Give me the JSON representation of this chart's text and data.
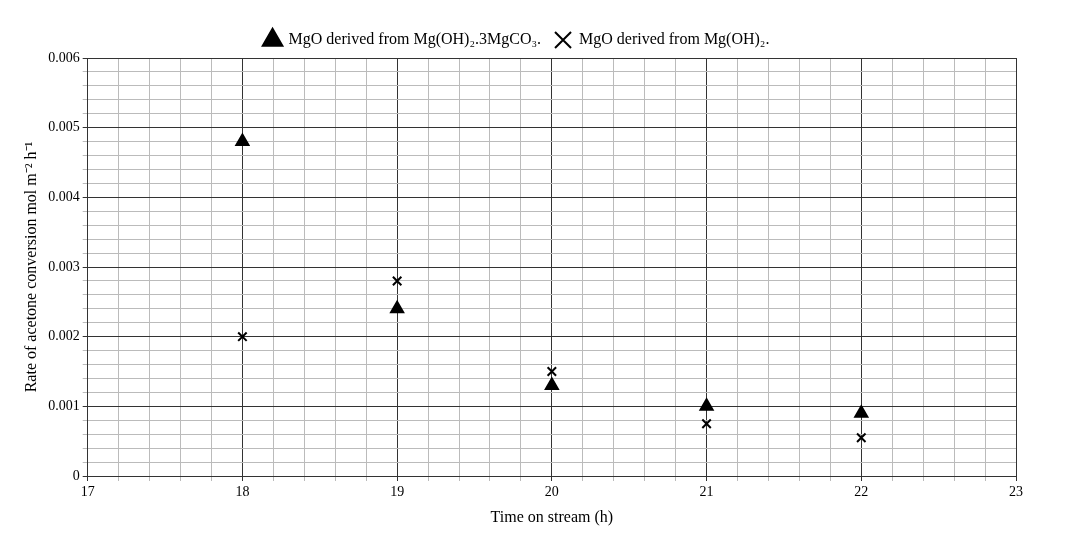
{
  "chart_data": {
    "type": "scatter",
    "xlabel": "Time on stream (h)",
    "ylabel": "Rate of acetone conversion mol m⁻² h⁻¹",
    "series": [
      {
        "name": "MgO derived from Mg(OH)₂.3MgCO₃.",
        "color": "#000000",
        "marker": "triangle",
        "x": [
          18,
          19,
          20,
          21,
          22
        ],
        "values": [
          0.0048,
          0.0024,
          0.0013,
          0.001,
          0.0009
        ]
      },
      {
        "name": "MgO derived from Mg(OH)₂.",
        "color": "#000000",
        "marker": "cross",
        "x": [
          18,
          19,
          20,
          21,
          22
        ],
        "values": [
          0.002,
          0.0028,
          0.0015,
          0.00075,
          0.00055
        ]
      }
    ],
    "xlim": [
      17,
      23
    ],
    "xticks": [
      17,
      {
        "value": 17.2,
        "label": null
      },
      {
        "value": 17.4,
        "label": null
      },
      {
        "value": 17.6,
        "label": null
      },
      {
        "value": 17.8,
        "label": null
      },
      18,
      {
        "value": 18.2,
        "label": null
      },
      {
        "value": 18.4,
        "label": null
      },
      {
        "value": 18.6,
        "label": null
      },
      {
        "value": 18.8,
        "label": null
      },
      19,
      {
        "value": 19.2,
        "label": null
      },
      {
        "value": 19.4,
        "label": null
      },
      {
        "value": 19.6,
        "label": null
      },
      {
        "value": 19.8,
        "label": null
      },
      20,
      {
        "value": 20.2,
        "label": null
      },
      {
        "value": 20.4,
        "label": null
      },
      {
        "value": 20.6,
        "label": null
      },
      {
        "value": 20.8,
        "label": null
      },
      21,
      {
        "value": 21.2,
        "label": null
      },
      {
        "value": 21.4,
        "label": null
      },
      {
        "value": 21.6,
        "label": null
      },
      {
        "value": 21.8,
        "label": null
      },
      22,
      {
        "value": 22.2,
        "label": null
      },
      {
        "value": 22.4,
        "label": null
      },
      {
        "value": 22.6,
        "label": null
      },
      {
        "value": 22.8,
        "label": null
      },
      23
    ],
    "ylim": [
      0,
      0.006
    ],
    "yticks": [
      0,
      {
        "value": 0.0002,
        "label": null
      },
      {
        "value": 0.0004,
        "label": null
      },
      {
        "value": 0.0006,
        "label": null
      },
      {
        "value": 0.0008,
        "label": null
      },
      0.001,
      {
        "value": 0.0012,
        "label": null
      },
      {
        "value": 0.0014,
        "label": null
      },
      {
        "value": 0.0016,
        "label": null
      },
      {
        "value": 0.0018,
        "label": null
      },
      0.002,
      {
        "value": 0.0022,
        "label": null
      },
      {
        "value": 0.0024,
        "label": null
      },
      {
        "value": 0.0026,
        "label": null
      },
      {
        "value": 0.0028,
        "label": null
      },
      0.003,
      {
        "value": 0.0032,
        "label": null
      },
      {
        "value": 0.0034,
        "label": null
      },
      {
        "value": 0.0036,
        "label": null
      },
      {
        "value": 0.0038,
        "label": null
      },
      0.004,
      {
        "value": 0.0042,
        "label": null
      },
      {
        "value": 0.0044,
        "label": null
      },
      {
        "value": 0.0046,
        "label": null
      },
      {
        "value": 0.0048,
        "label": null
      },
      0.005,
      {
        "value": 0.0052,
        "label": null
      },
      {
        "value": 0.0054,
        "label": null
      },
      {
        "value": 0.0056,
        "label": null
      },
      {
        "value": 0.0058,
        "label": null
      },
      0.006
    ],
    "grid": true,
    "legend": "top"
  }
}
